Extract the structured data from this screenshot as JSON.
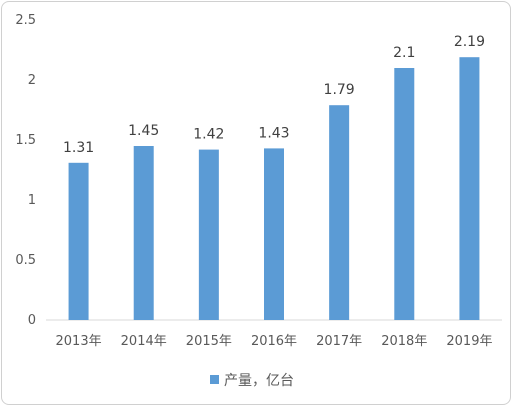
{
  "chart_data": {
    "type": "bar",
    "categories": [
      "2013年",
      "2014年",
      "2015年",
      "2016年",
      "2017年",
      "2018年",
      "2019年"
    ],
    "series": [
      {
        "name": "产量，亿台",
        "values": [
          1.31,
          1.45,
          1.42,
          1.43,
          1.79,
          2.1,
          2.19
        ],
        "data_labels": [
          "1.31",
          "1.45",
          "1.42",
          "1.43",
          "1.79",
          "2.1",
          "2.19"
        ],
        "color": "#5b9bd5"
      }
    ],
    "ylim": [
      0,
      2.5
    ],
    "yticks": [
      "0",
      "0.5",
      "1",
      "1.5",
      "2",
      "2.5"
    ],
    "grid": false,
    "legend": "bottom-center"
  }
}
